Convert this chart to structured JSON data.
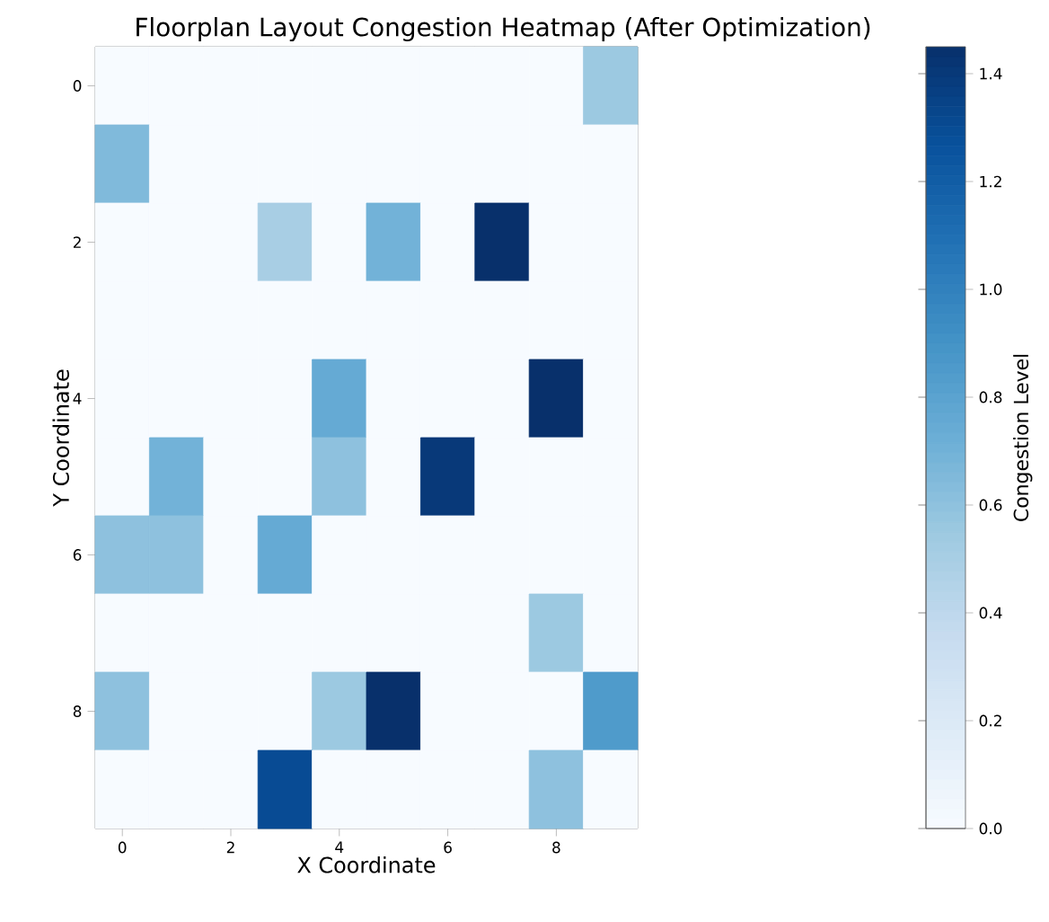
{
  "chart_data": {
    "type": "heatmap",
    "title": "Floorplan Layout Congestion Heatmap (After Optimization)",
    "xlabel": "X Coordinate",
    "ylabel": "Y Coordinate",
    "clabel": "Congestion Level",
    "categories": [
      "0",
      null,
      "2",
      null,
      "4",
      null,
      "6",
      null,
      "8",
      null
    ],
    "y_categories": [
      "0",
      null,
      "2",
      null,
      "4",
      null,
      "6",
      null,
      "8",
      null
    ],
    "cells": [
      [
        0,
        0,
        0,
        0,
        0,
        0,
        0,
        0,
        0,
        0.55
      ],
      [
        0.65,
        0,
        0,
        0,
        0,
        0,
        0,
        0,
        0,
        0
      ],
      [
        0,
        0,
        0,
        0.5,
        0,
        0.7,
        0,
        1.45,
        0,
        0
      ],
      [
        0,
        0,
        0,
        0,
        0,
        0,
        0,
        0,
        0,
        0
      ],
      [
        0,
        0,
        0,
        0,
        0.75,
        0,
        0,
        0,
        1.45,
        0
      ],
      [
        0,
        0.7,
        0,
        0,
        0.6,
        0,
        1.4,
        0,
        0,
        0
      ],
      [
        0.6,
        0.6,
        0,
        0.75,
        0,
        0,
        0,
        0,
        0,
        0
      ],
      [
        0,
        0,
        0,
        0,
        0,
        0,
        0,
        0,
        0.55,
        0
      ],
      [
        0.6,
        0,
        0,
        0,
        0.55,
        1.45,
        0,
        0,
        0,
        0.85
      ],
      [
        0,
        0,
        0,
        1.3,
        0,
        0,
        0,
        0,
        0.6,
        0
      ]
    ],
    "clim": [
      0,
      1.45
    ],
    "cticks": [
      {
        "value": 0,
        "label": "0.0"
      },
      0.2,
      0.4,
      0.6,
      0.8,
      {
        "value": 1,
        "label": "1.0"
      },
      1.2,
      1.4
    ]
  }
}
